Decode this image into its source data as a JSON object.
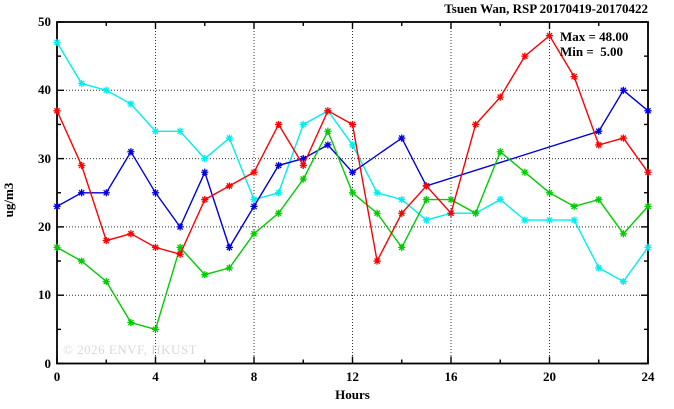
{
  "title": "Tsuen Wan, RSP 20170419-20170422",
  "chart_data": {
    "type": "line",
    "title": "Tsuen Wan, RSP 20170419-20170422",
    "xlabel": "Hours",
    "ylabel": "ug/m3",
    "xlim": [
      0,
      24
    ],
    "ylim": [
      0,
      50
    ],
    "x_major_ticks": [
      0,
      4,
      8,
      12,
      16,
      20,
      24
    ],
    "x_minor_ticks": [
      2,
      6,
      10,
      14,
      18,
      22
    ],
    "y_major_ticks": [
      0,
      10,
      20,
      30,
      40,
      50
    ],
    "y_minor_ticks": [
      5,
      15,
      25,
      35,
      45
    ],
    "x_grid_at": [
      4,
      8,
      12,
      16,
      20
    ],
    "y_grid_at": [
      10,
      20,
      30,
      40
    ],
    "grid_style": "dotted",
    "legend_position": "none",
    "marker": "asterisk",
    "x": [
      0,
      1,
      2,
      3,
      4,
      5,
      6,
      7,
      8,
      9,
      10,
      11,
      12,
      13,
      14,
      15,
      16,
      17,
      18,
      19,
      20,
      21,
      22,
      23,
      24
    ],
    "series": [
      {
        "name": "cyan",
        "color": "#00eeee",
        "values": [
          47,
          41,
          40,
          38,
          34,
          34,
          30,
          33,
          24,
          25,
          35,
          37,
          32,
          25,
          24,
          21,
          22,
          22,
          24,
          21,
          21,
          21,
          14,
          12,
          17
        ]
      },
      {
        "name": "blue",
        "color": "#0000dd",
        "values": [
          23,
          25,
          25,
          31,
          25,
          20,
          28,
          17,
          23,
          29,
          30,
          32,
          28,
          null,
          33,
          26,
          null,
          null,
          null,
          null,
          null,
          null,
          34,
          40,
          37
        ]
      },
      {
        "name": "green",
        "color": "#00cc00",
        "values": [
          17,
          15,
          12,
          6,
          5,
          17,
          13,
          14,
          19,
          22,
          27,
          34,
          25,
          22,
          17,
          24,
          24,
          22,
          31,
          28,
          25,
          23,
          24,
          19,
          23
        ]
      },
      {
        "name": "red",
        "color": "#ff0000",
        "values": [
          37,
          29,
          18,
          19,
          17,
          16,
          24,
          26,
          28,
          35,
          29,
          37,
          35,
          15,
          22,
          26,
          22,
          35,
          39,
          45,
          48,
          42,
          32,
          33,
          28
        ]
      }
    ],
    "annotations": {
      "max_label": "Max = 48.00",
      "min_label": "Min =  5.00"
    },
    "max_value": 48.0,
    "min_value": 5.0,
    "watermark": "© 2026 ENVF, HKUST",
    "axis_color": "#000000",
    "background_color": "#ffffff"
  }
}
